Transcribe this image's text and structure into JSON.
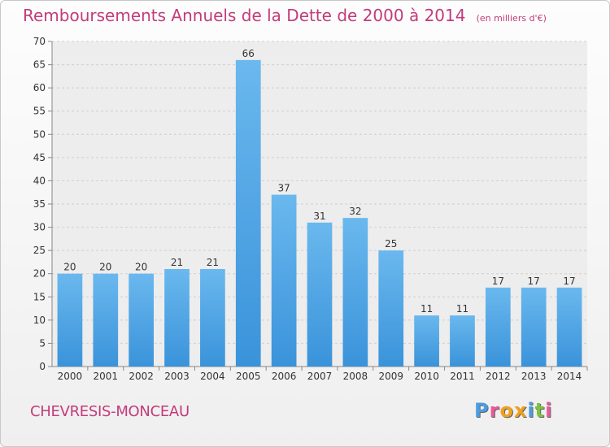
{
  "header": {
    "title": "Remboursements Annuels de la Dette de 2000 à 2014",
    "subtitle": "(en milliers d'€)"
  },
  "footer": {
    "town": "CHEVRESIS-MONCEAU",
    "logo": {
      "text": "Proxiti",
      "colors": [
        "#4a9de0",
        "#e85a9c",
        "#f0a020",
        "#f0a020",
        "#4a9de0",
        "#7cc142",
        "#e85a9c"
      ]
    }
  },
  "chart_data": {
    "type": "bar",
    "categories": [
      "2000",
      "2001",
      "2002",
      "2003",
      "2004",
      "2005",
      "2006",
      "2007",
      "2008",
      "2009",
      "2010",
      "2011",
      "2012",
      "2013",
      "2014"
    ],
    "values": [
      20,
      20,
      20,
      21,
      21,
      66,
      37,
      31,
      32,
      25,
      11,
      11,
      17,
      17,
      17
    ],
    "ylim": [
      0,
      70
    ],
    "yticks": [
      0,
      5,
      10,
      15,
      20,
      25,
      30,
      35,
      40,
      45,
      50,
      55,
      60,
      65,
      70
    ],
    "grid": true,
    "bar_color": "#3a93da",
    "bar_color_light": "#6ab8ee",
    "data_labels": true
  }
}
